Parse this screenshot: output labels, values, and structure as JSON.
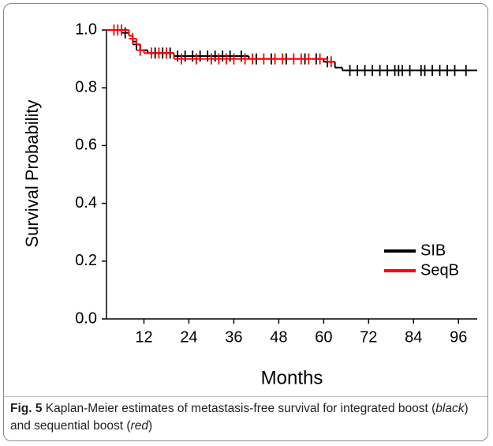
{
  "chart_data": {
    "type": "kaplan-meier",
    "xlabel": "Months",
    "ylabel": "Survival Probability",
    "xlim": [
      2,
      101
    ],
    "ylim": [
      0,
      1
    ],
    "xticks": [
      12,
      24,
      36,
      48,
      60,
      72,
      84,
      96
    ],
    "yticks": [
      {
        "value": 0,
        "label": "0.0"
      },
      0.2,
      0.4,
      0.6,
      0.8,
      {
        "value": 1,
        "label": "1.0"
      }
    ],
    "legend": "lower right",
    "series": [
      {
        "name": "SIB",
        "color": "#000000",
        "x": [
          2,
          6,
          8,
          9,
          10,
          11,
          13,
          20,
          40,
          60,
          63,
          65,
          101
        ],
        "values": [
          1.0,
          0.99,
          0.98,
          0.96,
          0.95,
          0.93,
          0.92,
          0.91,
          0.9,
          0.89,
          0.87,
          0.86,
          0.86
        ],
        "censor_x": [
          7,
          10,
          15,
          17,
          19,
          21,
          23,
          25,
          27,
          29,
          31,
          33,
          35,
          38,
          42,
          46,
          50,
          55,
          58,
          61,
          67,
          69,
          71,
          73,
          75,
          77,
          79,
          80,
          81,
          83,
          86,
          87,
          89,
          91,
          93,
          95,
          98
        ],
        "censor_y": [
          0.99,
          0.95,
          0.92,
          0.92,
          0.92,
          0.91,
          0.91,
          0.91,
          0.91,
          0.91,
          0.91,
          0.91,
          0.91,
          0.91,
          0.9,
          0.9,
          0.9,
          0.9,
          0.9,
          0.89,
          0.86,
          0.86,
          0.86,
          0.86,
          0.86,
          0.86,
          0.86,
          0.86,
          0.86,
          0.86,
          0.86,
          0.86,
          0.86,
          0.86,
          0.86,
          0.86,
          0.86
        ]
      },
      {
        "name": "SeqB",
        "color": "#ff0000",
        "x": [
          2,
          8,
          9,
          10,
          11,
          12,
          20,
          61,
          63
        ],
        "values": [
          1.0,
          0.98,
          0.97,
          0.95,
          0.93,
          0.92,
          0.9,
          0.89,
          0.89
        ],
        "censor_x": [
          4,
          5,
          6,
          9,
          11,
          14,
          16,
          18,
          22,
          26,
          30,
          32,
          34,
          36,
          39,
          41,
          44,
          47,
          49,
          52,
          54,
          56,
          59,
          62
        ],
        "censor_y": [
          1.0,
          1.0,
          1.0,
          0.97,
          0.93,
          0.92,
          0.92,
          0.92,
          0.9,
          0.9,
          0.9,
          0.9,
          0.9,
          0.9,
          0.9,
          0.9,
          0.9,
          0.9,
          0.9,
          0.9,
          0.9,
          0.9,
          0.9,
          0.89
        ]
      }
    ]
  },
  "caption": {
    "label": "Fig. 5",
    "parts": [
      "Kaplan-Meier estimates of metastasis-free survival for integrated boost (",
      "black",
      ") and sequential boost (",
      "red",
      ")"
    ]
  }
}
